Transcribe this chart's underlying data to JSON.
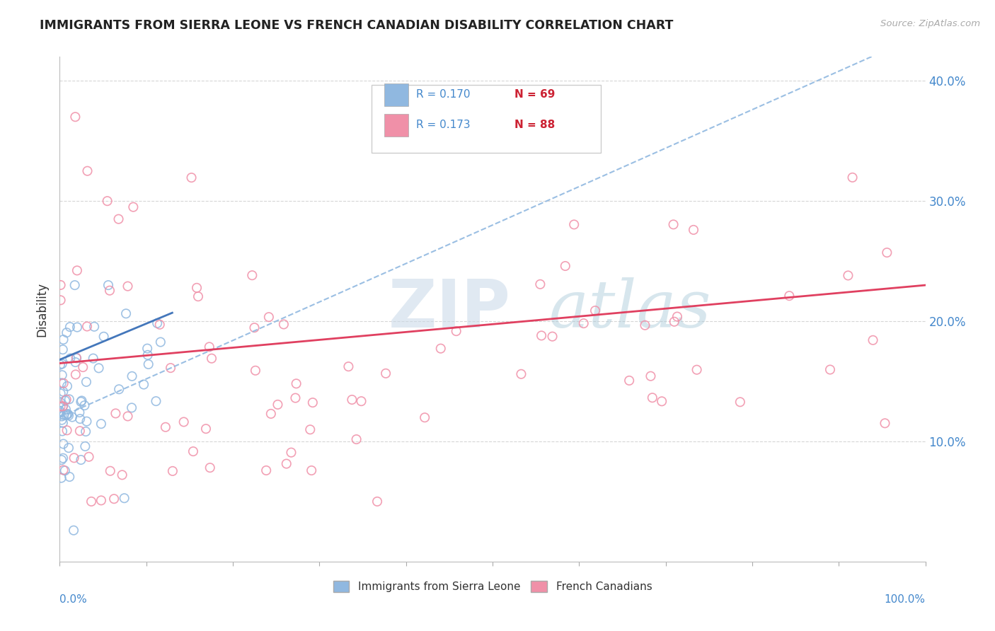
{
  "title": "IMMIGRANTS FROM SIERRA LEONE VS FRENCH CANADIAN DISABILITY CORRELATION CHART",
  "source": "Source: ZipAtlas.com",
  "ylabel": "Disability",
  "watermark_text": "ZIP",
  "watermark_text2": "atlas",
  "legend_footer": [
    "Immigrants from Sierra Leone",
    "French Canadians"
  ],
  "blue_N": 69,
  "pink_N": 88,
  "blue_color": "#90b8e0",
  "pink_color": "#f090a8",
  "blue_line_color": "#4477bb",
  "pink_line_color": "#e04060",
  "dashed_line_color": "#90b8e0",
  "grid_color": "#cccccc",
  "background_color": "#ffffff",
  "ytick_color": "#4488cc",
  "xtick_edge_color": "#4488cc",
  "blue_marker_size": 80,
  "pink_marker_size": 80,
  "blue_line_intercept": 0.168,
  "blue_line_slope": 0.3,
  "pink_line_intercept": 0.165,
  "pink_line_slope": 0.065,
  "dashed_line_intercept": 0.12,
  "dashed_line_slope": 0.32
}
